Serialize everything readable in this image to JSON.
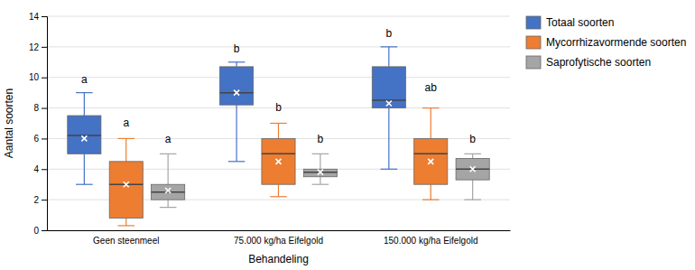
{
  "chart_data": {
    "type": "box",
    "categories": [
      "Geen steenmeel",
      "75.000 kg/ha Eifelgold",
      "150.000 kg/ha Eifelgold"
    ],
    "series": [
      {
        "name": "Totaal soorten",
        "color": "#4472C4",
        "boxes": [
          {
            "whislo": 3.0,
            "q1": 5.0,
            "med": 6.2,
            "q3": 7.5,
            "whishi": 9.0,
            "mean": 6.0
          },
          {
            "whislo": 4.5,
            "q1": 8.2,
            "med": 9.0,
            "q3": 10.7,
            "whishi": 11.0,
            "mean": 9.0
          },
          {
            "whislo": 4.0,
            "q1": 8.0,
            "med": 8.5,
            "q3": 10.7,
            "whishi": 12.0,
            "mean": 8.3
          }
        ]
      },
      {
        "name": "Mycorrhizavormende soorten",
        "color": "#ED7D31",
        "boxes": [
          {
            "whislo": 0.3,
            "q1": 0.8,
            "med": 3.0,
            "q3": 4.5,
            "whishi": 6.0,
            "mean": 3.0
          },
          {
            "whislo": 2.2,
            "q1": 3.0,
            "med": 5.0,
            "q3": 6.0,
            "whishi": 7.0,
            "mean": 4.5
          },
          {
            "whislo": 2.0,
            "q1": 3.0,
            "med": 5.0,
            "q3": 6.0,
            "whishi": 8.0,
            "mean": 4.5
          }
        ]
      },
      {
        "name": "Saprofytische soorten",
        "color": "#A5A5A5",
        "boxes": [
          {
            "whislo": 1.5,
            "q1": 2.0,
            "med": 2.5,
            "q3": 3.0,
            "whishi": 5.0,
            "mean": 2.6
          },
          {
            "whislo": 3.0,
            "q1": 3.5,
            "med": 3.8,
            "q3": 4.0,
            "whishi": 5.0,
            "mean": 3.8
          },
          {
            "whislo": 2.0,
            "q1": 3.3,
            "med": 4.0,
            "q3": 4.7,
            "whishi": 5.0,
            "mean": 4.0
          }
        ]
      }
    ],
    "annotations": [
      {
        "category": "Geen steenmeel",
        "series": "Totaal soorten",
        "label": "a",
        "y": 9.5
      },
      {
        "category": "Geen steenmeel",
        "series": "Mycorrhizavormende soorten",
        "label": "a",
        "y": 6.7
      },
      {
        "category": "Geen steenmeel",
        "series": "Saprofytische soorten",
        "label": "a",
        "y": 5.6
      },
      {
        "category": "75.000 kg/ha Eifelgold",
        "series": "Totaal soorten",
        "label": "b",
        "y": 11.5
      },
      {
        "category": "75.000 kg/ha Eifelgold",
        "series": "Mycorrhizavormende soorten",
        "label": "b",
        "y": 7.7
      },
      {
        "category": "75.000 kg/ha Eifelgold",
        "series": "Saprofytische soorten",
        "label": "b",
        "y": 5.6
      },
      {
        "category": "150.000 kg/ha Eifelgold",
        "series": "Totaal soorten",
        "label": "b",
        "y": 12.5
      },
      {
        "category": "150.000 kg/ha Eifelgold",
        "series": "Mycorrhizavormende soorten",
        "label": "ab",
        "y": 9.0
      },
      {
        "category": "150.000 kg/ha Eifelgold",
        "series": "Saprofytische soorten",
        "label": "b",
        "y": 5.6
      }
    ],
    "xlabel": "Behandeling",
    "ylabel": "Aantal soorten",
    "ylim": [
      0,
      14
    ],
    "yticks": [
      0,
      2,
      4,
      6,
      8,
      10,
      12,
      14
    ],
    "grid": true,
    "legend": "right"
  }
}
